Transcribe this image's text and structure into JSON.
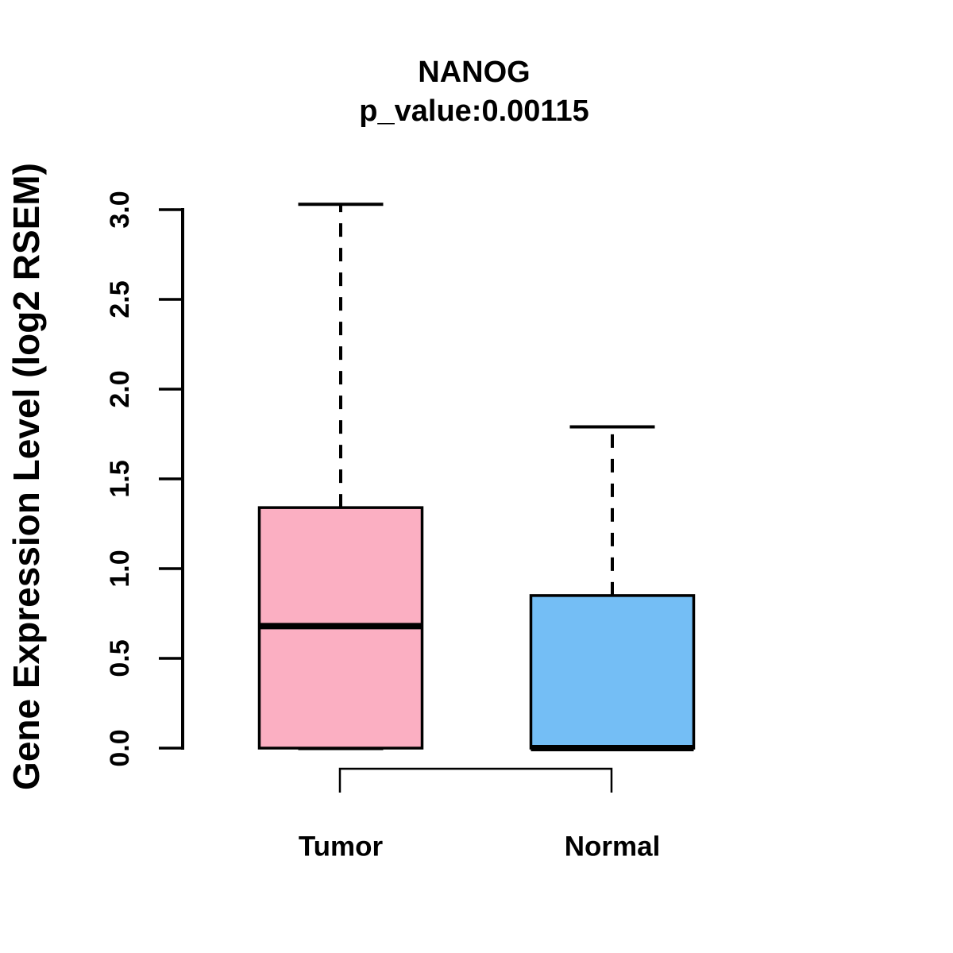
{
  "figure": {
    "title": "NANOG",
    "subtitle": "p_value:0.00115"
  },
  "chart_data": {
    "type": "boxplot",
    "title": "NANOG",
    "subtitle": "p_value:0.00115",
    "p_value": 0.00115,
    "ylabel": "Gene Expression Level (log2 RSEM)",
    "xlabel": "",
    "categories": [
      "Tumor",
      "Normal"
    ],
    "y_ticks": [
      "0.0",
      "0.5",
      "1.0",
      "1.5",
      "2.0",
      "2.5",
      "3.0"
    ],
    "ylim": [
      0.0,
      3.03
    ],
    "grid": false,
    "legend": "none",
    "series": [
      {
        "name": "Tumor",
        "box_color": "#FBAFC2",
        "whisker_min": 0.0,
        "q1": 0.0,
        "median": 0.68,
        "q3": 1.34,
        "whisker_max": 3.03,
        "outliers": []
      },
      {
        "name": "Normal",
        "box_color": "#74BEF5",
        "whisker_min": 0.0,
        "q1": 0.0,
        "median": 0.0,
        "q3": 0.85,
        "whisker_max": 1.79,
        "outliers": []
      }
    ],
    "comparison_bracket": {
      "from": "Tumor",
      "to": "Normal"
    },
    "colors": {
      "stroke": "#000000",
      "background": "#FFFFFF"
    }
  }
}
